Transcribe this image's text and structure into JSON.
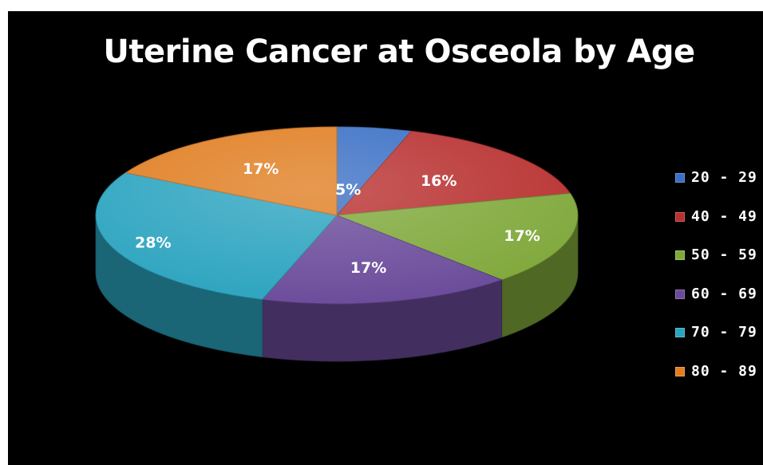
{
  "chart_data": {
    "type": "pie",
    "title": "Uterine Cancer at Osceola by Age",
    "categories": [
      "20 - 29",
      "40 - 49",
      "50 - 59",
      "60 - 69",
      "70 - 79",
      "80 - 89"
    ],
    "values": [
      5,
      16,
      17,
      17,
      28,
      17
    ],
    "data_labels": [
      "5%",
      "16%",
      "17%",
      "17%",
      "28%",
      "17%"
    ],
    "colors": [
      "#3a6fc4",
      "#b8302f",
      "#7fa83a",
      "#6a4a9a",
      "#2aa3bf",
      "#e07d20"
    ],
    "legend_position": "right",
    "style": "3d"
  }
}
